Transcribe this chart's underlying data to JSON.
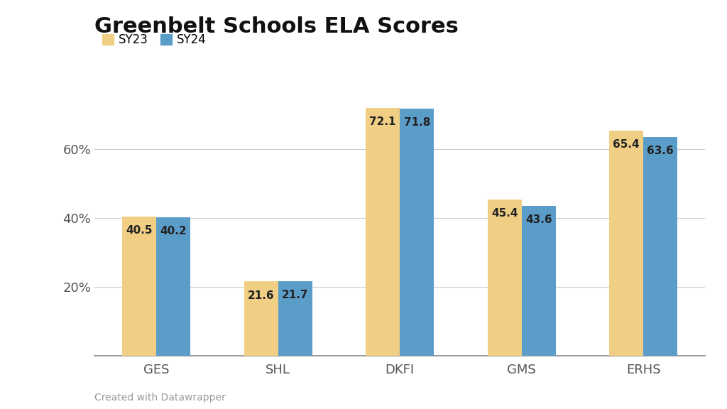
{
  "title": "Greenbelt Schools ELA Scores",
  "categories": [
    "GES",
    "SHL",
    "DKFI",
    "GMS",
    "ERHS"
  ],
  "sy23_values": [
    40.5,
    21.6,
    72.1,
    45.4,
    65.4
  ],
  "sy24_values": [
    40.2,
    21.7,
    71.8,
    43.6,
    63.6
  ],
  "sy23_color": "#F0CF85",
  "sy24_color": "#5B9DC9",
  "background_color": "#FFFFFF",
  "grid_color": "#CCCCCC",
  "yticks": [
    0,
    20,
    40,
    60
  ],
  "ytick_labels": [
    "",
    "20%",
    "40%",
    "60%"
  ],
  "ylim": [
    0,
    82
  ],
  "bar_width": 0.28,
  "legend_labels": [
    "SY23",
    "SY24"
  ],
  "label_fontsize": 12,
  "title_fontsize": 22,
  "tick_fontsize": 13,
  "value_fontsize": 11,
  "footer_text": "Created with Datawrapper",
  "footer_fontsize": 10,
  "footer_color": "#999999"
}
